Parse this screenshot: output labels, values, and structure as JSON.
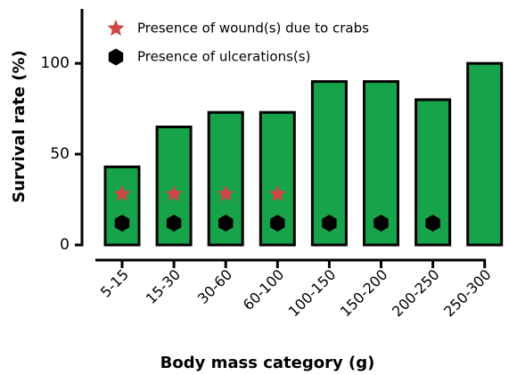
{
  "chart_data": {
    "type": "bar",
    "xlabel": "Body mass category (g)",
    "ylabel": "Survival rate (%)",
    "categories": [
      "5-15",
      "15-30",
      "30-60",
      "60-100",
      "100-150",
      "150-200",
      "200-250",
      "250-300"
    ],
    "values": [
      43,
      65,
      73,
      73,
      90,
      90,
      80,
      100
    ],
    "color": "#16a34a",
    "ylim": [
      0,
      130
    ],
    "yticks": [
      0,
      50,
      100
    ],
    "series": [
      {
        "name": "Presence of wound(s) due to crabs",
        "color": "#d14545",
        "marker": "star",
        "values": [
          28,
          28,
          28,
          28,
          null,
          null,
          null,
          null
        ]
      },
      {
        "name": "Presence of ulcerations(s)",
        "color": "#000000",
        "marker": "hexagon",
        "values": [
          12,
          12,
          12,
          12,
          12,
          12,
          12,
          null
        ]
      }
    ]
  }
}
